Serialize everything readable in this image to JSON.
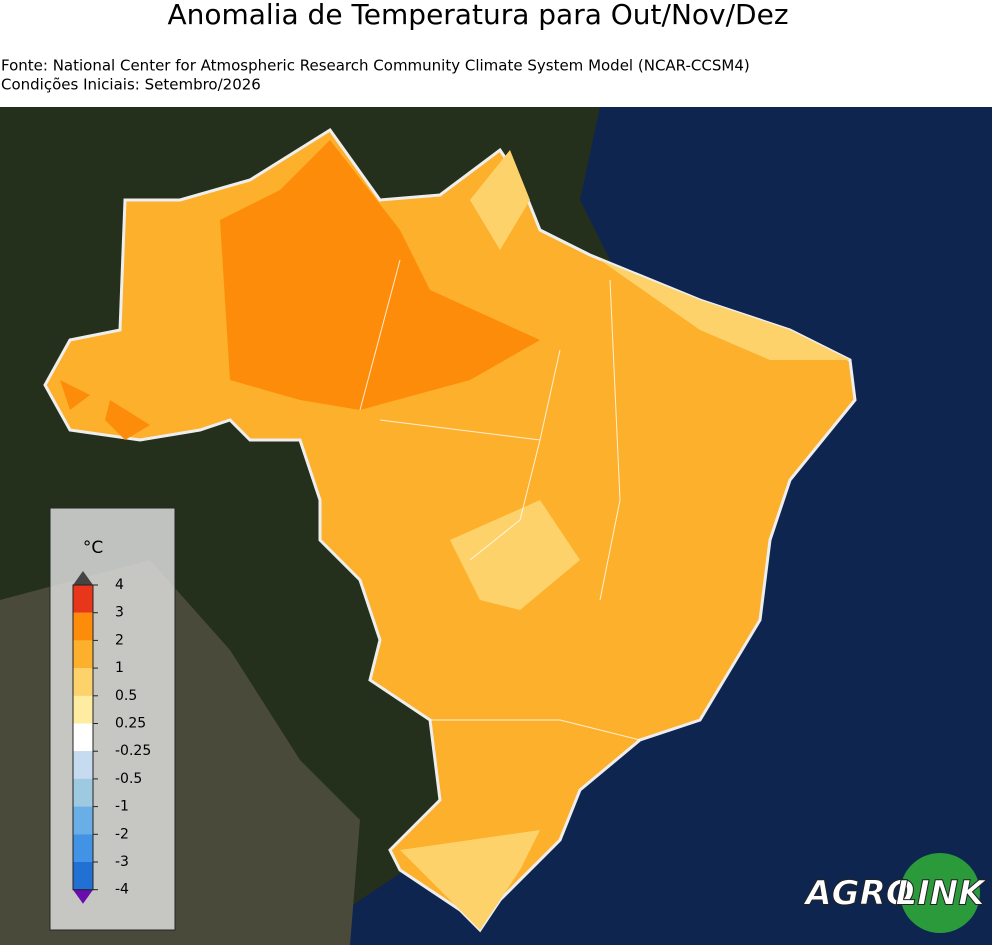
{
  "header": {
    "title": "Anomalia de Temperatura para Out/Nov/Dez",
    "source": "Fonte: National Center for Atmospheric Research Community Climate System Model (NCAR-CCSM4)",
    "initial": "Condições Iniciais: Setembro/2026"
  },
  "legend": {
    "unit": "°C",
    "ticks": [
      "4",
      "3",
      "2",
      "1",
      "0.5",
      "0.25",
      "-0.25",
      "-0.5",
      "-1",
      "-2",
      "-3",
      "-4"
    ],
    "colors": [
      "#e8361a",
      "#fd8c0a",
      "#fdb02b",
      "#fdd26b",
      "#feeca0",
      "#ffffff",
      "#c6dbef",
      "#9ecae1",
      "#6aaee8",
      "#4292e6",
      "#2171d5"
    ]
  },
  "logo": {
    "left": "AGRO",
    "right": "LINK"
  }
}
